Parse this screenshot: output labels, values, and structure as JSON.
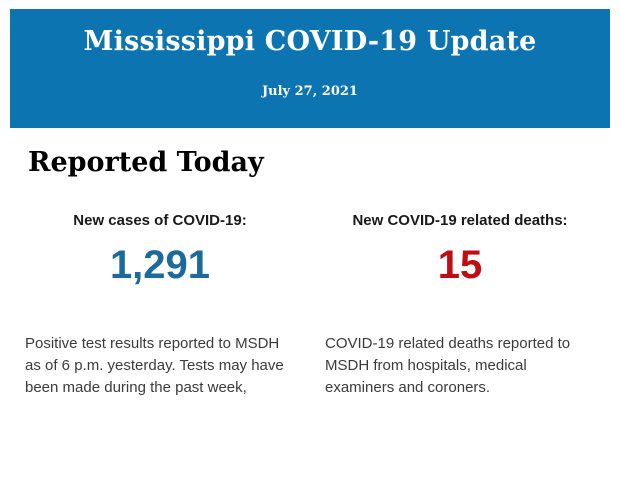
{
  "header": {
    "title": "Mississippi COVID-19 Update",
    "date": "July 27, 2021",
    "background_color": "#0d74b2",
    "text_color": "#ffffff"
  },
  "section": {
    "heading": "Reported Today"
  },
  "stats": [
    {
      "label": "New cases of COVID-19:",
      "value": "1,291",
      "value_color": "#1b6a9b",
      "description": "Positive test results reported to MSDH as of 6 p.m. yesterday. Tests may have been made during the past week,"
    },
    {
      "label": "New COVID-19 related deaths:",
      "value": "15",
      "value_color": "#c00d14",
      "description": "COVID-19 related deaths reported to MSDH from hospitals, medical examiners and coroners."
    }
  ]
}
